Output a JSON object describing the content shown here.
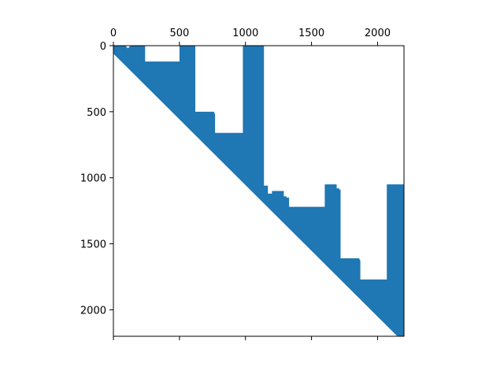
{
  "colors": {
    "fill": "#1f77b4",
    "frame": "#000000",
    "background": "#ffffff"
  },
  "chart_data": {
    "type": "sparsity",
    "title": "",
    "xlabel": "",
    "ylabel": "",
    "grid": false,
    "xlim": [
      0,
      2200
    ],
    "ylim": [
      0,
      2200
    ],
    "y_inverted": true,
    "x_axis_position": "top",
    "x_ticks": [
      0,
      500,
      1000,
      1500,
      2000
    ],
    "x_tick_labels": [
      "0",
      "500",
      "1000",
      "1500",
      "2000"
    ],
    "y_ticks": [
      0,
      500,
      1000,
      1500,
      2000
    ],
    "y_tick_labels": [
      "0",
      "500",
      "1000",
      "1500",
      "2000"
    ],
    "nonzero_region": [
      [
        0,
        0
      ],
      [
        40,
        0
      ],
      [
        60,
        0
      ],
      [
        80,
        0
      ],
      [
        90,
        0
      ],
      [
        110,
        20
      ],
      [
        130,
        0
      ],
      [
        130,
        0
      ],
      [
        160,
        0
      ],
      [
        200,
        0
      ],
      [
        220,
        0
      ],
      [
        230,
        0
      ],
      [
        240,
        0
      ],
      [
        240,
        120
      ],
      [
        500,
        120
      ],
      [
        500,
        0
      ],
      [
        620,
        0
      ],
      [
        620,
        500
      ],
      [
        760,
        500
      ],
      [
        770,
        520
      ],
      [
        770,
        660
      ],
      [
        980,
        660
      ],
      [
        980,
        0
      ],
      [
        1140,
        0
      ],
      [
        1140,
        1060
      ],
      [
        1170,
        1060
      ],
      [
        1170,
        1120
      ],
      [
        1200,
        1120
      ],
      [
        1200,
        1100
      ],
      [
        1290,
        1100
      ],
      [
        1290,
        1140
      ],
      [
        1310,
        1140
      ],
      [
        1310,
        1150
      ],
      [
        1330,
        1150
      ],
      [
        1330,
        1220
      ],
      [
        1600,
        1220
      ],
      [
        1600,
        1050
      ],
      [
        1690,
        1050
      ],
      [
        1690,
        1080
      ],
      [
        1710,
        1080
      ],
      [
        1710,
        1090
      ],
      [
        1720,
        1090
      ],
      [
        1720,
        1610
      ],
      [
        1860,
        1610
      ],
      [
        1870,
        1630
      ],
      [
        1870,
        1770
      ],
      [
        2070,
        1770
      ],
      [
        2070,
        1050
      ],
      [
        2200,
        1050
      ],
      [
        2200,
        2200
      ],
      [
        2150,
        2200
      ],
      [
        0,
        60
      ]
    ]
  }
}
